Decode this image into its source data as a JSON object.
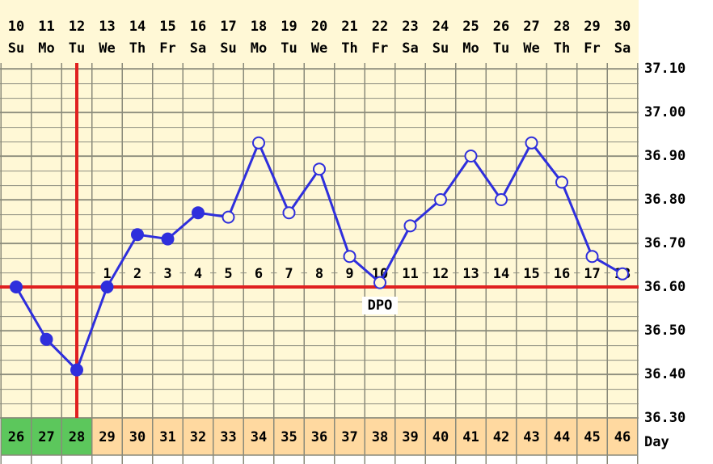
{
  "chart_data": {
    "type": "line",
    "categories": [
      "10",
      "11",
      "12",
      "13",
      "14",
      "15",
      "16",
      "17",
      "18",
      "19",
      "20",
      "21",
      "22",
      "23",
      "24",
      "25",
      "26",
      "27",
      "28",
      "29",
      "30"
    ],
    "weekdays": [
      "Su",
      "Mo",
      "Tu",
      "We",
      "Th",
      "Fr",
      "Sa",
      "Su",
      "Mo",
      "Tu",
      "We",
      "Th",
      "Fr",
      "Sa",
      "Su",
      "Mo",
      "Tu",
      "We",
      "Th",
      "Fr",
      "Sa"
    ],
    "values": [
      36.6,
      36.48,
      36.41,
      36.6,
      36.72,
      36.71,
      36.77,
      36.76,
      36.93,
      36.77,
      36.87,
      36.67,
      36.61,
      36.74,
      36.8,
      36.9,
      36.8,
      36.93,
      36.84,
      36.67,
      36.63
    ],
    "filled": [
      true,
      true,
      true,
      true,
      true,
      true,
      true,
      false,
      false,
      false,
      false,
      false,
      false,
      false,
      false,
      false,
      false,
      false,
      false,
      false,
      false
    ],
    "color": "#2f2fdc",
    "ylim": [
      36.3,
      37.1
    ],
    "yticks": [
      {
        "value": 36.3,
        "label": "36.30"
      },
      {
        "value": 36.4,
        "label": "36.40"
      },
      {
        "value": 36.5,
        "label": "36.50"
      },
      {
        "value": 36.6,
        "label": "36.60"
      },
      {
        "value": 36.7,
        "label": "36.70"
      },
      {
        "value": 36.8,
        "label": "36.80"
      },
      {
        "value": 36.9,
        "label": "36.90"
      },
      {
        "value": 37.0,
        "label": "37.00"
      },
      {
        "value": 37.1,
        "label": "37.10"
      }
    ],
    "coverline": 36.6,
    "coverline_color": "#e02020",
    "marker_line_category": "12",
    "dpo": [
      null,
      null,
      null,
      "1",
      "2",
      "3",
      "4",
      "5",
      "6",
      "7",
      "8",
      "9",
      "10",
      "11",
      "12",
      "13",
      "14",
      "15",
      "16",
      "17",
      "18"
    ],
    "dpo_label": "DPO",
    "cycle_days": [
      "26",
      "27",
      "28",
      "29",
      "30",
      "31",
      "32",
      "33",
      "34",
      "35",
      "36",
      "37",
      "38",
      "39",
      "40",
      "41",
      "42",
      "43",
      "44",
      "45",
      "46"
    ],
    "cycle_day_colors": [
      "#5cc75c",
      "#5cc75c",
      "#5cc75c",
      "#ffd9a0",
      "#ffd9a0",
      "#ffd9a0",
      "#ffd9a0",
      "#ffd9a0",
      "#ffd9a0",
      "#ffd9a0",
      "#ffd9a0",
      "#ffd9a0",
      "#ffd9a0",
      "#ffd9a0",
      "#ffd9a0",
      "#ffd9a0",
      "#ffd9a0",
      "#ffd9a0",
      "#ffd9a0",
      "#ffd9a0",
      "#ffd9a0"
    ],
    "cycle_day_label": "Day",
    "background": "#fff8d6"
  }
}
